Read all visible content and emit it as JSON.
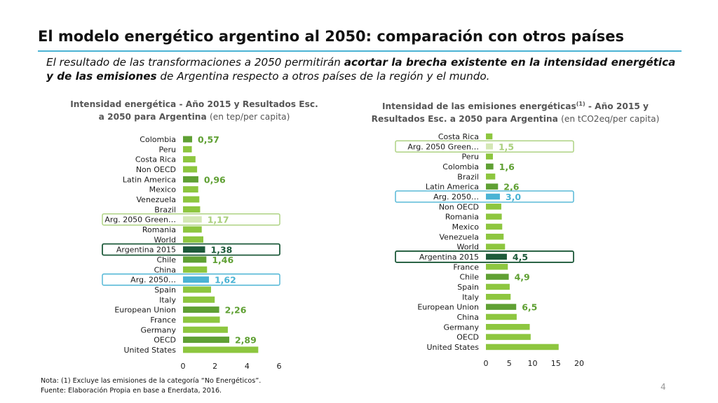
{
  "header": {
    "title": "El modelo energético argentino al 2050: comparación con otros países",
    "subtitle_part1": "El resultado de las transformaciones a 2050 permitirán ",
    "subtitle_bold": "acortar la brecha existente en la intensidad energética y de las emisiones",
    "subtitle_part2": " de Argentina respecto a otros países de la región y el mundo."
  },
  "colors": {
    "bar": "#8dc63f",
    "bar_dark": "#5fa033",
    "argentina": "#1d5a3a",
    "green_scenario": "#d4e8b5",
    "scenario": "#4ab3d4",
    "label_green": "#5fa033",
    "label_scenario": "#4ab3d4",
    "label_light": "#a8cf7a"
  },
  "chart_data": [
    {
      "type": "bar",
      "orientation": "horizontal",
      "title_bold": "Intensidad energética - Año 2015 y Resultados Esc. a 2050 para Argentina",
      "title_unit": "(en tep/per capita)",
      "xlim": [
        0,
        6
      ],
      "xticks": [
        "0",
        "2",
        "4",
        "6"
      ],
      "categories": [
        "Colombia",
        "Peru",
        "Costa Rica",
        "Non OECD",
        "Latin America",
        "Mexico",
        "Venezuela",
        "Brazil",
        "Arg. 2050 Green…",
        "Romania",
        "World",
        "Argentina 2015",
        "Chile",
        "China",
        "Arg. 2050…",
        "Spain",
        "Italy",
        "European Union",
        "France",
        "Germany",
        "OECD",
        "United States"
      ],
      "values": [
        0.57,
        0.55,
        0.78,
        0.88,
        0.96,
        0.95,
        1.02,
        1.07,
        1.17,
        1.17,
        1.27,
        1.38,
        1.46,
        1.5,
        1.62,
        1.75,
        1.98,
        2.26,
        2.3,
        2.8,
        2.89,
        4.7
      ],
      "data_labels": [
        "0,57",
        "",
        "",
        "",
        "0,96",
        "",
        "",
        "",
        "1,17",
        "",
        "",
        "1,38",
        "1,46",
        "",
        "1,62",
        "",
        "",
        "2,26",
        "",
        "",
        "2,89",
        ""
      ],
      "styles": [
        "dark",
        "normal",
        "normal",
        "normal",
        "dark",
        "normal",
        "normal",
        "normal",
        "green",
        "normal",
        "normal",
        "argentina",
        "dark",
        "normal",
        "scenario",
        "normal",
        "normal",
        "dark",
        "normal",
        "normal",
        "dark",
        "normal"
      ]
    },
    {
      "type": "bar",
      "orientation": "horizontal",
      "title_bold": "Intensidad de las emisiones energéticas",
      "title_sup": "(1)",
      "title_bold2": " - Año 2015 y Resultados Esc. a 2050 para Argentina",
      "title_unit": "(en tCO2eq/per capita)",
      "xlim": [
        0,
        20
      ],
      "xticks": [
        "0",
        "5",
        "10",
        "15",
        "20"
      ],
      "categories": [
        "Costa Rica",
        "Arg. 2050 Green…",
        "Peru",
        "Colombia",
        "Brazil",
        "Latin America",
        "Arg. 2050…",
        "Non OECD",
        "Romania",
        "Mexico",
        "Venezuela",
        "World",
        "Argentina 2015",
        "France",
        "Chile",
        "Spain",
        "Italy",
        "European Union",
        "China",
        "Germany",
        "OECD",
        "United States"
      ],
      "values": [
        1.4,
        1.5,
        1.5,
        1.6,
        2.0,
        2.6,
        3.0,
        3.3,
        3.4,
        3.5,
        3.8,
        4.1,
        4.5,
        4.7,
        4.9,
        5.1,
        5.3,
        6.5,
        6.6,
        9.4,
        9.6,
        15.6
      ],
      "data_labels": [
        "",
        "1,5",
        "",
        "1,6",
        "",
        "2,6",
        "3,0",
        "",
        "",
        "",
        "",
        "",
        "4,5",
        "",
        "4,9",
        "",
        "",
        "6,5",
        "",
        "",
        "",
        ""
      ],
      "styles": [
        "normal",
        "green",
        "normal",
        "dark",
        "normal",
        "dark",
        "scenario",
        "normal",
        "normal",
        "normal",
        "normal",
        "normal",
        "argentina",
        "normal",
        "dark",
        "normal",
        "normal",
        "dark",
        "normal",
        "normal",
        "normal",
        "normal"
      ]
    }
  ],
  "footer": {
    "note": "Nota: (1) Excluye las emisiones de la categoría “No Energéticos”.",
    "source": "Fuente: Elaboración Propia en base a Enerdata, 2016.",
    "page_number": "4"
  }
}
